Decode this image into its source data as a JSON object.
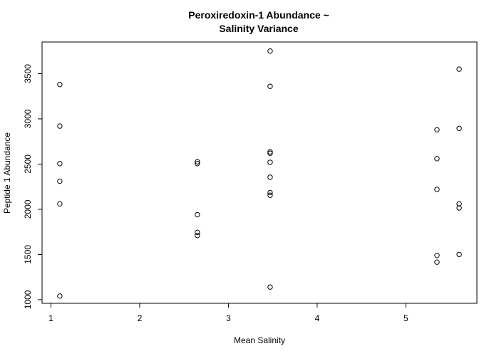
{
  "chart_data": {
    "type": "scatter",
    "title": [
      "Peroxiredoxin-1 Abundance ~",
      "Salinity Variance"
    ],
    "xlabel": "Mean Salinity",
    "ylabel": "Peptide 1 Abundance",
    "xlim": [
      0.9,
      5.8
    ],
    "ylim": [
      960,
      3850
    ],
    "xticks": [
      1,
      2,
      3,
      4,
      5
    ],
    "yticks": [
      1000,
      1500,
      2000,
      2500,
      3000,
      3500
    ],
    "grid": false,
    "legend": "none",
    "marker": "open-circle",
    "points": [
      {
        "x": 1.1,
        "y": 3380
      },
      {
        "x": 1.1,
        "y": 2920
      },
      {
        "x": 1.1,
        "y": 2505
      },
      {
        "x": 1.1,
        "y": 2310
      },
      {
        "x": 1.1,
        "y": 2060
      },
      {
        "x": 1.1,
        "y": 1040
      },
      {
        "x": 2.65,
        "y": 2525
      },
      {
        "x": 2.65,
        "y": 2505
      },
      {
        "x": 2.65,
        "y": 1940
      },
      {
        "x": 2.65,
        "y": 1745
      },
      {
        "x": 2.65,
        "y": 1710
      },
      {
        "x": 3.47,
        "y": 3750
      },
      {
        "x": 3.47,
        "y": 3360
      },
      {
        "x": 3.47,
        "y": 2635
      },
      {
        "x": 3.47,
        "y": 2620
      },
      {
        "x": 3.47,
        "y": 2520
      },
      {
        "x": 3.47,
        "y": 2355
      },
      {
        "x": 3.47,
        "y": 2185
      },
      {
        "x": 3.47,
        "y": 2155
      },
      {
        "x": 3.47,
        "y": 1140
      },
      {
        "x": 5.35,
        "y": 2880
      },
      {
        "x": 5.35,
        "y": 2560
      },
      {
        "x": 5.35,
        "y": 2220
      },
      {
        "x": 5.35,
        "y": 1490
      },
      {
        "x": 5.35,
        "y": 1415
      },
      {
        "x": 5.6,
        "y": 3550
      },
      {
        "x": 5.6,
        "y": 2895
      },
      {
        "x": 5.6,
        "y": 2060
      },
      {
        "x": 5.6,
        "y": 2015
      },
      {
        "x": 5.6,
        "y": 1500
      }
    ]
  }
}
